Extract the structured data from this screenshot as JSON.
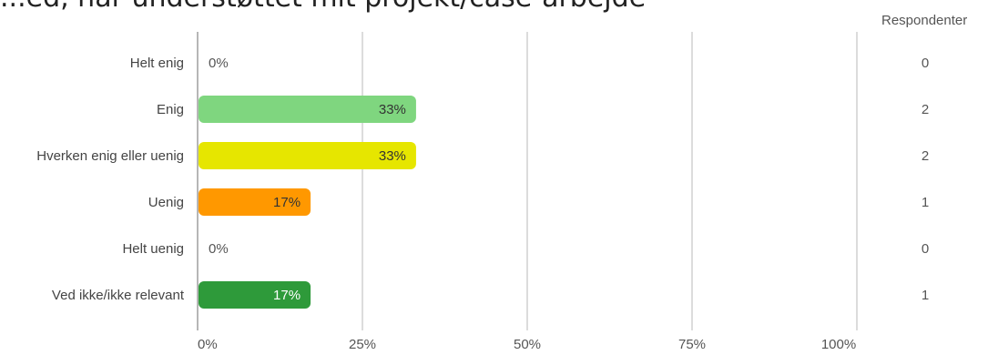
{
  "chart_data": {
    "type": "bar",
    "orientation": "horizontal",
    "title": "...ed, når understøttet mit projekt/case-arbejde",
    "categories": [
      "Helt enig",
      "Enig",
      "Hverken enig eller uenig",
      "Uenig",
      "Helt uenig",
      "Ved ikke/ikke relevant"
    ],
    "values": [
      0,
      33,
      33,
      17,
      0,
      17
    ],
    "value_labels": [
      "0%",
      "33%",
      "33%",
      "17%",
      "0%",
      "17%"
    ],
    "respondents_header": "Respondenter",
    "respondents": [
      0,
      2,
      2,
      1,
      0,
      1
    ],
    "colors": [
      "#9e9e9e",
      "#7fd67f",
      "#e6e600",
      "#ff9800",
      "#9e9e9e",
      "#2e9a3a"
    ],
    "xlim": [
      0,
      100
    ],
    "xticks": [
      "0%",
      "25%",
      "50%",
      "75%",
      "100%"
    ],
    "xtick_values": [
      0,
      25,
      50,
      75,
      100
    ],
    "grid": true
  }
}
